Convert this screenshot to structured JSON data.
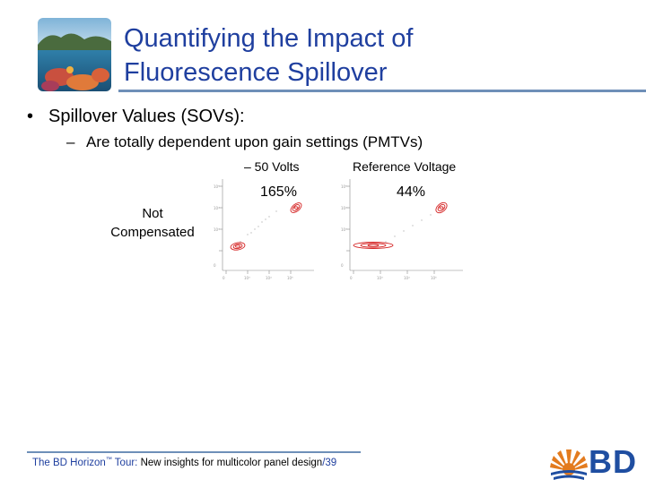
{
  "slide": {
    "title_line1": "Quantifying the Impact of",
    "title_line2": "Fluorescence Spillover",
    "bullet1": "Spillover Values (SOVs):",
    "bullet2": "Are totally dependent upon gain settings (PMTVs)",
    "bullet_marker": "•",
    "sub_marker": "–",
    "accent_color": "#1f3f9f",
    "rule_color": "#6e8fb8"
  },
  "table": {
    "col1_label": "– 50 Volts",
    "col2_label": "Reference Voltage",
    "row_label_line1": "Not",
    "row_label_line2": "Compensated",
    "col1_value": "165%",
    "col2_value": "44%"
  },
  "footer": {
    "text_main": "The BD Horizon",
    "trademark": "™",
    "text_tour": " Tour: ",
    "text_rest": "New insights for multicolor panel design",
    "page": "/39"
  },
  "logo": {
    "text": "BD",
    "brand_color": "#1f4ea1",
    "sun_color": "#e37b1e"
  }
}
